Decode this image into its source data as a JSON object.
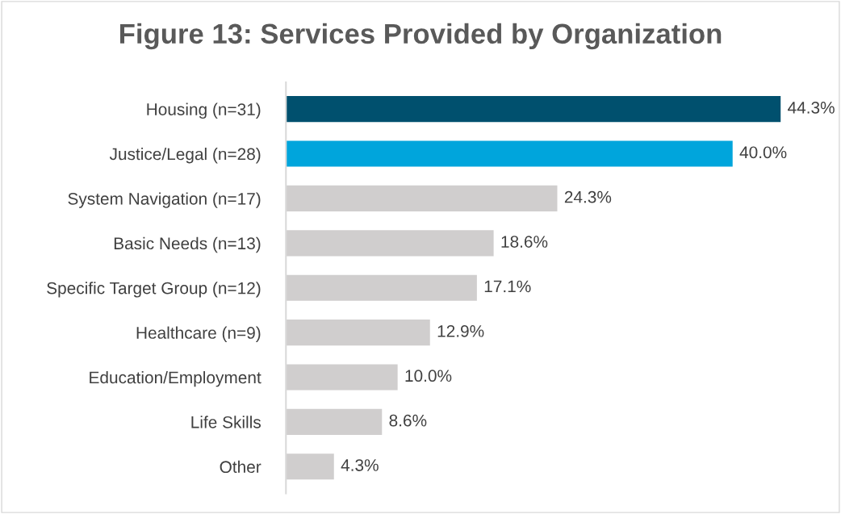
{
  "chart_data": {
    "type": "bar",
    "orientation": "horizontal",
    "title": "Figure 13: Services Provided by Organization",
    "categories": [
      "Housing (n=31)",
      "Justice/Legal (n=28)",
      "System Navigation (n=17)",
      "Basic Needs (n=13)",
      "Specific Target Group (n=12)",
      "Healthcare (n=9)",
      "Education/Employment",
      "Life Skills",
      "Other"
    ],
    "values": [
      44.3,
      40.0,
      24.3,
      18.6,
      17.1,
      12.9,
      10.0,
      8.6,
      4.3
    ],
    "colors": [
      "#00506e",
      "#00a5dc",
      "#d0cece",
      "#d0cece",
      "#d0cece",
      "#d0cece",
      "#d0cece",
      "#d0cece",
      "#d0cece"
    ],
    "value_labels": [
      "44.3%",
      "40.0%",
      "24.3%",
      "18.6%",
      "17.1%",
      "12.9%",
      "10.0%",
      "8.6%",
      "4.3%"
    ],
    "tick_labels": "y",
    "grid": false,
    "legend": false
  }
}
